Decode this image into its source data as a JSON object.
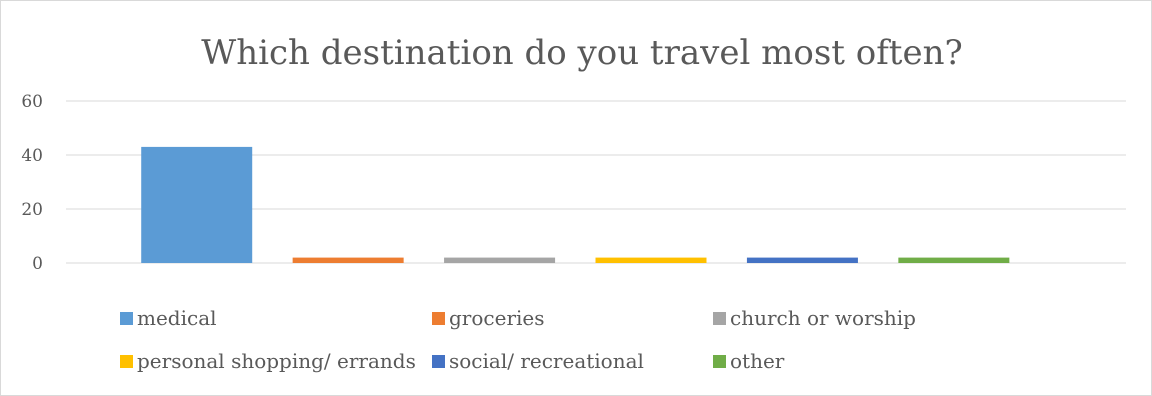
{
  "chart_data": {
    "type": "bar",
    "title": "Which destination do you travel most often?",
    "xlabel": "",
    "ylabel": "",
    "ylim": [
      0,
      60
    ],
    "yticks": [
      0,
      20,
      40,
      60
    ],
    "grid": true,
    "legend_position": "bottom",
    "series": [
      {
        "name": "medical",
        "value": 43,
        "color": "#5b9bd5"
      },
      {
        "name": "groceries",
        "value": 2,
        "color": "#ed7d31"
      },
      {
        "name": "church or worship",
        "value": 2,
        "color": "#a5a5a5"
      },
      {
        "name": "personal shopping/ errands",
        "value": 2,
        "color": "#ffc000"
      },
      {
        "name": "social/ recreational",
        "value": 2,
        "color": "#4472c4"
      },
      {
        "name": "other",
        "value": 2,
        "color": "#70ad47"
      }
    ]
  }
}
